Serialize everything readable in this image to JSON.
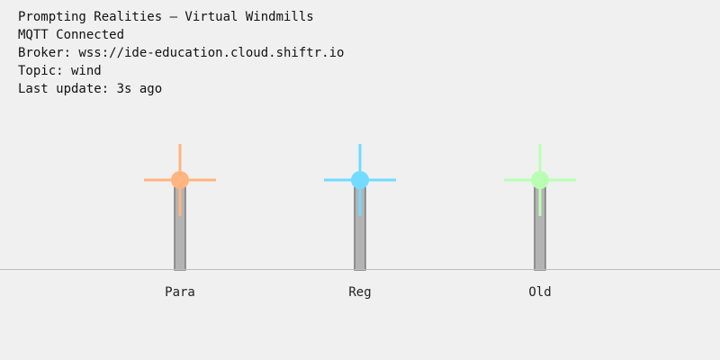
{
  "info": {
    "title": "Prompting Realities — Virtual Windmills",
    "status": "MQTT Connected",
    "broker": "Broker: wss://ide-education.cloud.shiftr.io",
    "topic": "Topic: wind",
    "last_update": "Last update: 3s ago"
  },
  "windmills": [
    {
      "label": "Para",
      "color": "#ffb57f"
    },
    {
      "label": "Reg",
      "color": "#72dbff"
    },
    {
      "label": "Old",
      "color": "#b9ffb3"
    }
  ],
  "colors": {
    "tower_fill": "#b3b3b3",
    "tower_stroke": "#7a7a7a",
    "background": "#f0f0f0"
  }
}
